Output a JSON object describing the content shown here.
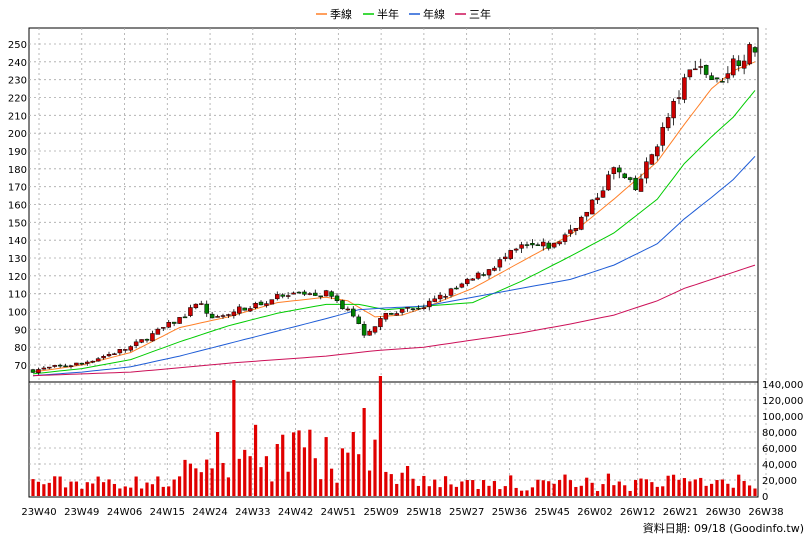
{
  "legend": [
    {
      "label": "季線",
      "color": "#ff7f27"
    },
    {
      "label": "半年",
      "color": "#00cc00"
    },
    {
      "label": "年線",
      "color": "#1e5cd6"
    },
    {
      "label": "三年",
      "color": "#cc1058"
    }
  ],
  "footer": "資料日期: 09/18  (Goodinfo.tw)",
  "chart_data": {
    "type": "candlestick-with-volume",
    "x_ticks": [
      "23W40",
      "23W49",
      "24W06",
      "24W15",
      "24W24",
      "24W33",
      "24W42",
      "24W51",
      "25W09",
      "25W18",
      "25W27",
      "25W36",
      "25W45",
      "26W02",
      "26W12",
      "26W21",
      "26W30",
      "26W38"
    ],
    "price_axis": {
      "ylim": [
        65,
        255
      ],
      "ticks": [
        70,
        80,
        90,
        100,
        110,
        120,
        130,
        140,
        150,
        160,
        170,
        180,
        190,
        200,
        210,
        220,
        230,
        240,
        250
      ]
    },
    "volume_axis": {
      "ylim": [
        0,
        150000
      ],
      "ticks": [
        0,
        20000,
        40000,
        60000,
        80000,
        100000,
        120000,
        140000
      ],
      "tick_labels": [
        "0",
        "20,000",
        "40,000",
        "60,000",
        "80,000",
        "100,000",
        "120,000",
        "140,000"
      ]
    },
    "up_color": "#cc0000",
    "down_color": "#008000",
    "price_anchors": [
      {
        "w": 0,
        "c": 67
      },
      {
        "w": 9,
        "c": 71
      },
      {
        "w": 18,
        "c": 80
      },
      {
        "w": 27,
        "c": 96
      },
      {
        "w": 31,
        "c": 105
      },
      {
        "w": 33,
        "c": 95
      },
      {
        "w": 36,
        "c": 99
      },
      {
        "w": 45,
        "c": 108
      },
      {
        "w": 54,
        "c": 110
      },
      {
        "w": 58,
        "c": 100
      },
      {
        "w": 61,
        "c": 88
      },
      {
        "w": 65,
        "c": 98
      },
      {
        "w": 72,
        "c": 103
      },
      {
        "w": 81,
        "c": 118
      },
      {
        "w": 90,
        "c": 136
      },
      {
        "w": 96,
        "c": 137
      },
      {
        "w": 102,
        "c": 155
      },
      {
        "w": 107,
        "c": 180
      },
      {
        "w": 111,
        "c": 168
      },
      {
        "w": 115,
        "c": 195
      },
      {
        "w": 119,
        "c": 222
      },
      {
        "w": 122,
        "c": 240
      },
      {
        "w": 126,
        "c": 228
      },
      {
        "w": 129,
        "c": 240
      },
      {
        "w": 133,
        "c": 248
      }
    ],
    "moving_averages": {
      "季線": [
        [
          0,
          66
        ],
        [
          9,
          70
        ],
        [
          18,
          77
        ],
        [
          27,
          91
        ],
        [
          36,
          97
        ],
        [
          45,
          105
        ],
        [
          54,
          108
        ],
        [
          58,
          106
        ],
        [
          63,
          97
        ],
        [
          68,
          98
        ],
        [
          72,
          102
        ],
        [
          81,
          113
        ],
        [
          90,
          128
        ],
        [
          99,
          143
        ],
        [
          107,
          163
        ],
        [
          115,
          184
        ],
        [
          120,
          205
        ],
        [
          125,
          225
        ],
        [
          129,
          235
        ],
        [
          133,
          240
        ]
      ],
      "半年": [
        [
          0,
          65
        ],
        [
          9,
          68
        ],
        [
          18,
          73
        ],
        [
          27,
          83
        ],
        [
          36,
          92
        ],
        [
          45,
          99
        ],
        [
          54,
          104
        ],
        [
          60,
          104
        ],
        [
          65,
          101
        ],
        [
          72,
          103
        ],
        [
          81,
          105
        ],
        [
          90,
          117
        ],
        [
          99,
          131
        ],
        [
          107,
          144
        ],
        [
          115,
          163
        ],
        [
          120,
          183
        ],
        [
          125,
          198
        ],
        [
          129,
          209
        ],
        [
          133,
          224
        ]
      ],
      "年線": [
        [
          0,
          64
        ],
        [
          9,
          66
        ],
        [
          18,
          69
        ],
        [
          27,
          75
        ],
        [
          36,
          82
        ],
        [
          45,
          89
        ],
        [
          54,
          96
        ],
        [
          60,
          101
        ],
        [
          65,
          102
        ],
        [
          72,
          103
        ],
        [
          81,
          108
        ],
        [
          90,
          113
        ],
        [
          99,
          118
        ],
        [
          107,
          126
        ],
        [
          115,
          138
        ],
        [
          120,
          152
        ],
        [
          125,
          164
        ],
        [
          129,
          174
        ],
        [
          133,
          187
        ]
      ],
      "三年": [
        [
          0,
          64
        ],
        [
          18,
          66
        ],
        [
          36,
          71
        ],
        [
          54,
          75
        ],
        [
          63,
          78
        ],
        [
          72,
          80
        ],
        [
          81,
          84
        ],
        [
          90,
          88
        ],
        [
          99,
          93
        ],
        [
          107,
          98
        ],
        [
          115,
          106
        ],
        [
          120,
          113
        ],
        [
          125,
          118
        ],
        [
          129,
          122
        ],
        [
          133,
          126
        ]
      ]
    },
    "volume_spikes": [
      {
        "w": 37,
        "v": 145000
      },
      {
        "w": 59,
        "v": 80000
      },
      {
        "w": 61,
        "v": 110000
      },
      {
        "w": 64,
        "v": 150000
      },
      {
        "w": 34,
        "v": 80000
      },
      {
        "w": 45,
        "v": 65000
      }
    ]
  }
}
